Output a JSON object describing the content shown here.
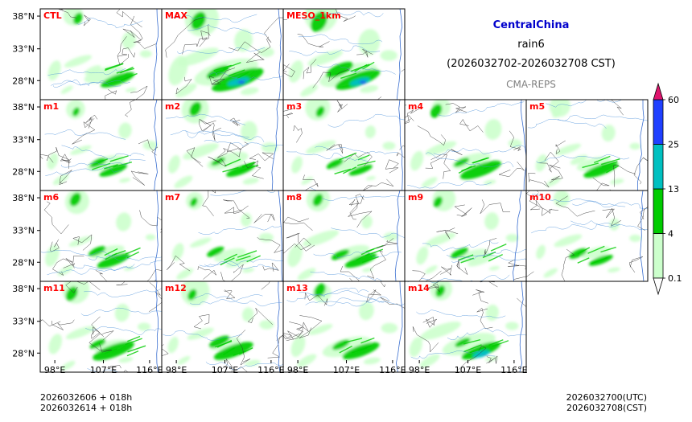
{
  "header": {
    "region": "CentralChina",
    "variable": "rain6",
    "period": "(2026032702-2026032708 CST)",
    "system": "CMA-REPS"
  },
  "footer": {
    "init_utc_line": "2026032606  +  018h",
    "init_cst_line": "2026032614  +  018h",
    "valid_utc": "2026032700(UTC)",
    "valid_cst": "2026032708(CST)"
  },
  "colors": {
    "level_0": "#ccffcc",
    "level_1": "#00cc00",
    "level_2": "#00c0c0",
    "level_3": "#2040ff",
    "over": "#e0156e",
    "river": "#4a90d9",
    "border": "#333333"
  },
  "chart_data": {
    "type": "heatmap",
    "title": "CentralChina rain6 (2026032702-2026032708 CST)",
    "subtitle": "CMA-REPS",
    "lat_ticks": [
      "38°N",
      "33°N",
      "28°N"
    ],
    "lon_ticks": [
      "98°E",
      "107°E",
      "116°E"
    ],
    "colorbar": {
      "levels": [
        "0.1",
        "4",
        "13",
        "25",
        "60"
      ],
      "colors": [
        "#ccffcc",
        "#00cc00",
        "#00c0c0",
        "#2040ff"
      ],
      "extend": "both"
    },
    "panels": [
      {
        "label": "CTL",
        "intensity": 0.8,
        "seed": 1
      },
      {
        "label": "MAX",
        "intensity": 1.3,
        "seed": 2
      },
      {
        "label": "MESO_1km",
        "intensity": 1.2,
        "seed": 3
      },
      {
        "label": "m1",
        "intensity": 0.8,
        "seed": 4
      },
      {
        "label": "m2",
        "intensity": 0.9,
        "seed": 5
      },
      {
        "label": "m3",
        "intensity": 0.8,
        "seed": 6
      },
      {
        "label": "m4",
        "intensity": 0.9,
        "seed": 7
      },
      {
        "label": "m5",
        "intensity": 0.8,
        "seed": 8
      },
      {
        "label": "m6",
        "intensity": 0.8,
        "seed": 9
      },
      {
        "label": "m7",
        "intensity": 0.8,
        "seed": 10
      },
      {
        "label": "m8",
        "intensity": 0.9,
        "seed": 11
      },
      {
        "label": "m9",
        "intensity": 0.8,
        "seed": 12
      },
      {
        "label": "m10",
        "intensity": 0.8,
        "seed": 13
      },
      {
        "label": "m11",
        "intensity": 0.9,
        "seed": 14
      },
      {
        "label": "m12",
        "intensity": 0.9,
        "seed": 15
      },
      {
        "label": "m13",
        "intensity": 0.9,
        "seed": 16
      },
      {
        "label": "m14",
        "intensity": 1.0,
        "seed": 17
      }
    ]
  }
}
